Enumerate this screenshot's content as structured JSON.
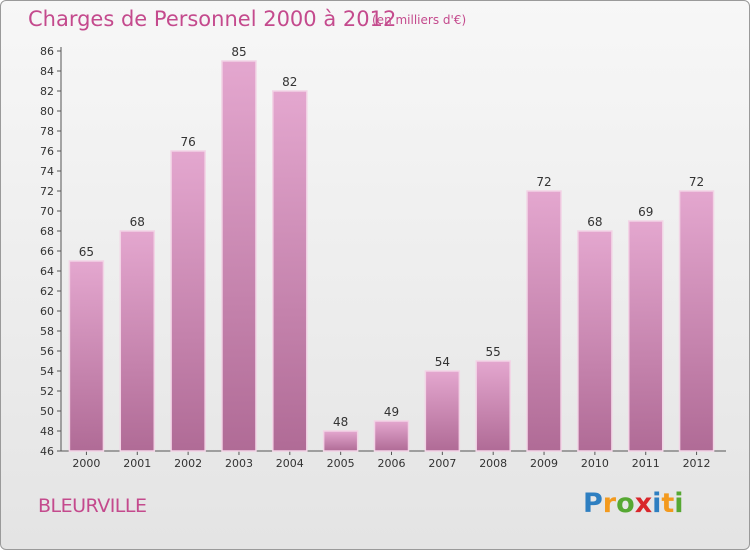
{
  "header": {
    "title": "Charges de Personnel 2000 à 2012",
    "subtitle": "(en milliers d'€)"
  },
  "footer": {
    "commune": "BLEURVILLE",
    "logo_letters": [
      "P",
      "r",
      "o",
      "x",
      "i",
      "t",
      "i"
    ],
    "logo_colors": [
      "#2e7fc1",
      "#f39a1e",
      "#56a832",
      "#d9262b",
      "#2e7fc1",
      "#f39a1e",
      "#56a832"
    ]
  },
  "colors": {
    "bar_top": "#e4a7cf",
    "bar_bottom": "#b06b96",
    "bar_edge": "#f2d4e6",
    "accent": "#c44a8d"
  },
  "chart_data": {
    "type": "bar",
    "categories": [
      "2000",
      "2001",
      "2002",
      "2003",
      "2004",
      "2005",
      "2006",
      "2007",
      "2008",
      "2009",
      "2010",
      "2011",
      "2012"
    ],
    "values": [
      65,
      68,
      76,
      85,
      82,
      48,
      49,
      54,
      55,
      72,
      68,
      69,
      72
    ],
    "ylim": [
      46,
      86
    ],
    "ytick_step": 2,
    "grid": false,
    "legend": "none"
  }
}
